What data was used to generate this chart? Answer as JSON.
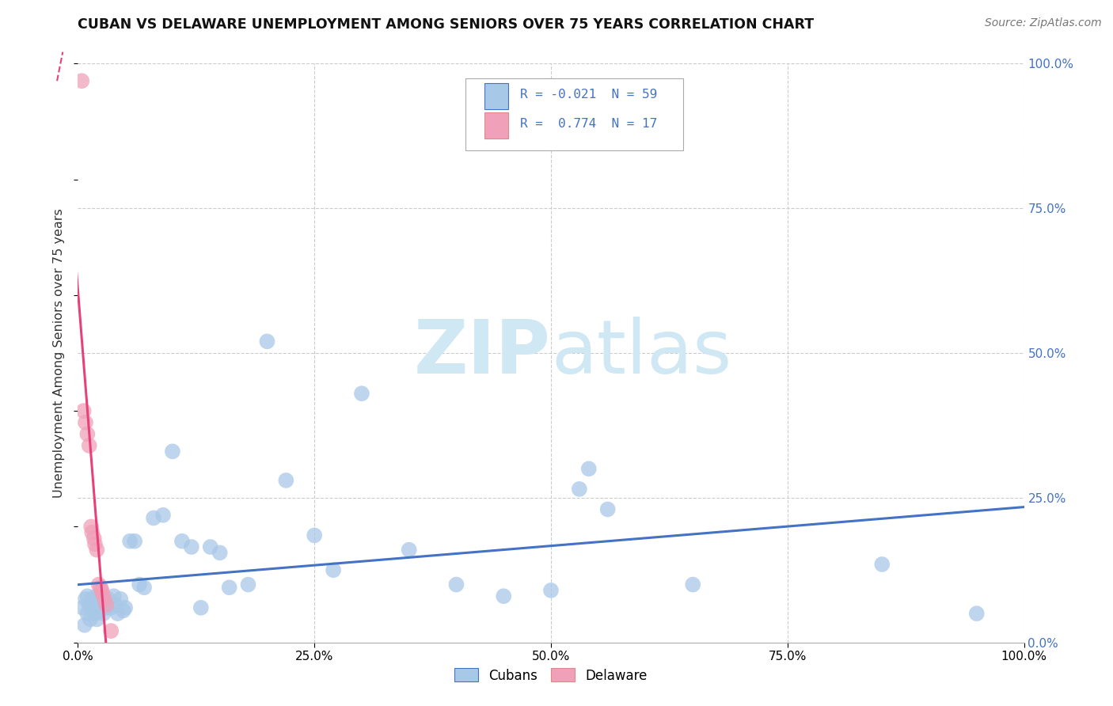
{
  "title": "CUBAN VS DELAWARE UNEMPLOYMENT AMONG SENIORS OVER 75 YEARS CORRELATION CHART",
  "source": "Source: ZipAtlas.com",
  "ylabel": "Unemployment Among Seniors over 75 years",
  "xlim": [
    0,
    1.0
  ],
  "ylim": [
    0,
    1.0
  ],
  "xticks": [
    0.0,
    0.25,
    0.5,
    0.75,
    1.0
  ],
  "yticks": [
    0.0,
    0.25,
    0.5,
    0.75,
    1.0
  ],
  "xticklabels": [
    "0.0%",
    "25.0%",
    "50.0%",
    "75.0%",
    "100.0%"
  ],
  "yticklabels": [
    "0.0%",
    "25.0%",
    "50.0%",
    "75.0%",
    "100.0%"
  ],
  "cubans_color": "#a8c8e8",
  "delaware_color": "#f0a0b8",
  "cubans_line_color": "#4472c4",
  "delaware_line_color": "#e8407a",
  "watermark_color": "#d0e8f4",
  "background_color": "#ffffff",
  "grid_color": "#cccccc",
  "cubans_x": [
    0.005,
    0.007,
    0.008,
    0.01,
    0.01,
    0.012,
    0.013,
    0.015,
    0.015,
    0.016,
    0.017,
    0.018,
    0.019,
    0.02,
    0.02,
    0.022,
    0.023,
    0.025,
    0.025,
    0.027,
    0.028,
    0.03,
    0.032,
    0.035,
    0.038,
    0.04,
    0.042,
    0.045,
    0.048,
    0.05,
    0.055,
    0.06,
    0.065,
    0.07,
    0.08,
    0.09,
    0.1,
    0.11,
    0.12,
    0.13,
    0.14,
    0.15,
    0.16,
    0.18,
    0.2,
    0.22,
    0.25,
    0.27,
    0.3,
    0.35,
    0.4,
    0.45,
    0.5,
    0.53,
    0.54,
    0.56,
    0.65,
    0.85,
    0.95
  ],
  "cubans_y": [
    0.06,
    0.03,
    0.075,
    0.05,
    0.08,
    0.065,
    0.04,
    0.055,
    0.075,
    0.06,
    0.07,
    0.05,
    0.08,
    0.06,
    0.04,
    0.07,
    0.055,
    0.06,
    0.08,
    0.05,
    0.07,
    0.06,
    0.075,
    0.06,
    0.08,
    0.065,
    0.05,
    0.075,
    0.055,
    0.06,
    0.175,
    0.175,
    0.1,
    0.095,
    0.215,
    0.22,
    0.33,
    0.175,
    0.165,
    0.06,
    0.165,
    0.155,
    0.095,
    0.1,
    0.52,
    0.28,
    0.185,
    0.125,
    0.43,
    0.16,
    0.1,
    0.08,
    0.09,
    0.265,
    0.3,
    0.23,
    0.1,
    0.135,
    0.05
  ],
  "delaware_x": [
    0.004,
    0.006,
    0.008,
    0.01,
    0.012,
    0.014,
    0.015,
    0.017,
    0.018,
    0.02,
    0.022,
    0.024,
    0.025,
    0.026,
    0.028,
    0.03,
    0.035
  ],
  "delaware_y": [
    0.97,
    0.4,
    0.38,
    0.36,
    0.34,
    0.2,
    0.19,
    0.18,
    0.17,
    0.16,
    0.1,
    0.095,
    0.09,
    0.085,
    0.075,
    0.065,
    0.02
  ]
}
